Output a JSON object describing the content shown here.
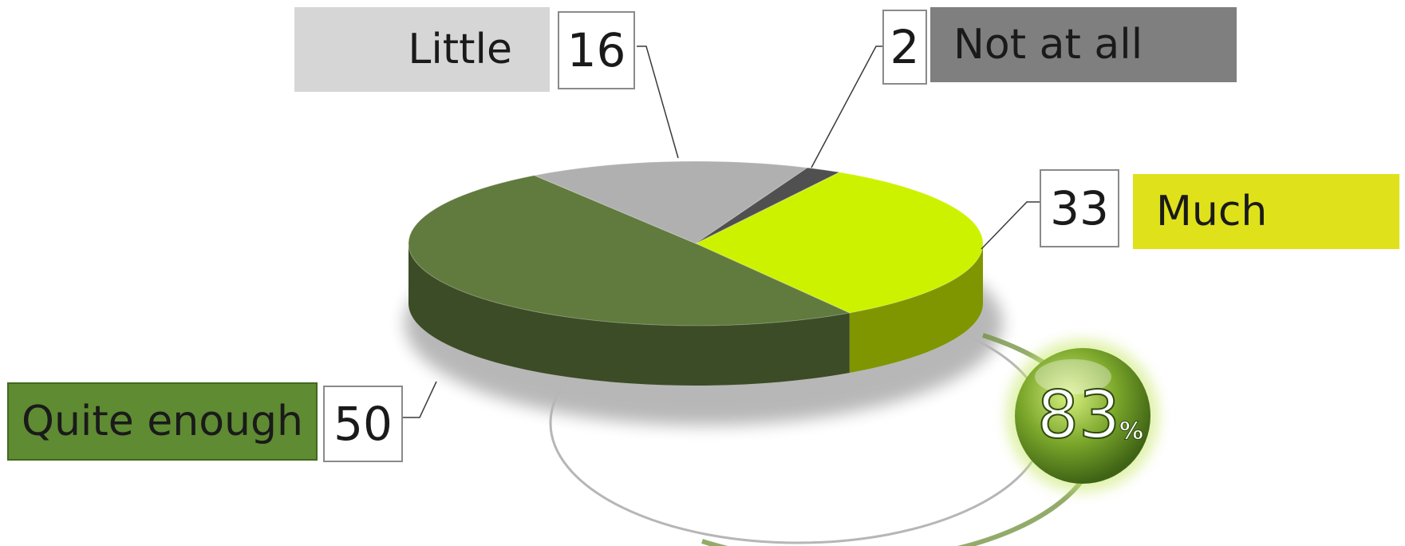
{
  "chart_data": {
    "type": "pie",
    "categories": [
      "Much",
      "Quite enough",
      "Little",
      "Not at all"
    ],
    "values": [
      33,
      50,
      16,
      2
    ],
    "colors": {
      "Much": "#cdf200",
      "Quite enough": "#617a3e",
      "Little": "#b0b0b0",
      "Not at all": "#505050"
    },
    "label_colors": {
      "Much": "#dfe21a",
      "Quite enough": "#5f8b33",
      "Little": "#d6d6d6",
      "Not at all": "#7f7f7f"
    },
    "three_d": true,
    "callout": {
      "value": "83",
      "unit": "%",
      "covers": [
        "Much",
        "Quite enough"
      ]
    }
  }
}
